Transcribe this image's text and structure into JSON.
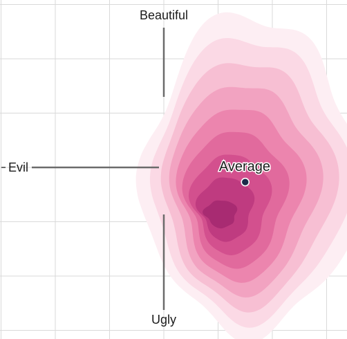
{
  "chart_data": {
    "type": "heatmap",
    "subtype": "density-contour",
    "axes": {
      "x": {
        "negative_label": "Evil",
        "positive_label": "",
        "range": [
          -3,
          3
        ]
      },
      "y": {
        "positive_label": "Beautiful",
        "negative_label": "Ugly",
        "range": [
          -3,
          3
        ]
      }
    },
    "grid": true,
    "gridlines_per_axis": 6,
    "colors": {
      "grid": "#d9d9d9",
      "axis": "#6b6b6b",
      "marker_fill": "#1c2a4a",
      "contour_levels": [
        "#fdeef3",
        "#fbd9e5",
        "#f7bfd3",
        "#f2a3c1",
        "#ec85ae",
        "#e16a9d",
        "#d3508e",
        "#bf3b80",
        "#a82b72"
      ]
    },
    "average": {
      "label": "Average",
      "x": 1.5,
      "y": -0.27
    },
    "density_peak": {
      "x": 1.06,
      "y": -0.85
    }
  }
}
